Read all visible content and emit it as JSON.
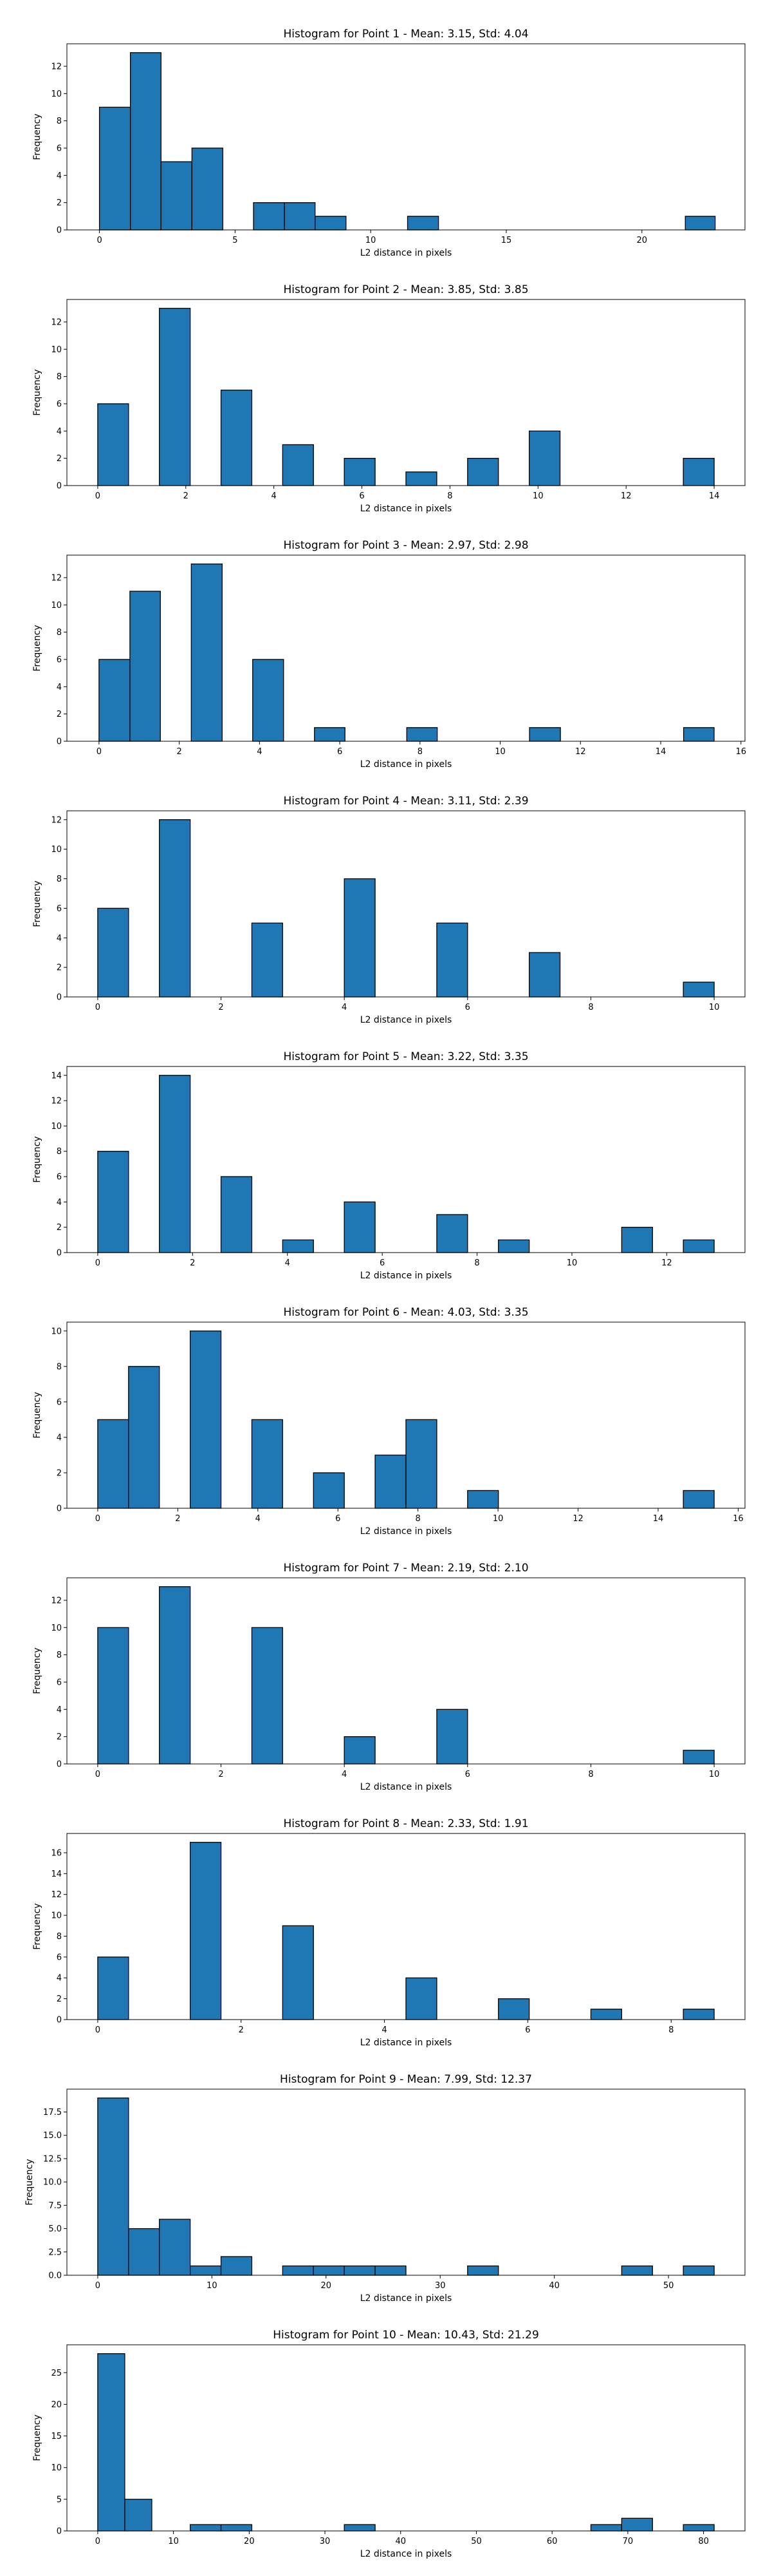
{
  "figure": {
    "bar_color": "#1f77b4",
    "edge_color": "#000000"
  },
  "chart_data": [
    {
      "type": "bar",
      "title": "Histogram for Point 1 - Mean: 3.15, Std: 4.04",
      "xlabel": "L2 distance in pixels",
      "ylabel": "Frequency",
      "xlim": [
        -1.2,
        23.8
      ],
      "ylim": [
        0,
        13.65
      ],
      "xticks": [
        0,
        5,
        10,
        15,
        20
      ],
      "xtick_labels": [
        "0",
        "5",
        "10",
        "15",
        "20"
      ],
      "yticks": [
        0,
        2,
        4,
        6,
        8,
        10,
        12
      ],
      "ytick_labels": [
        "0",
        "2",
        "4",
        "6",
        "8",
        "10",
        "12"
      ],
      "bins": [
        {
          "x0": 0.0,
          "x1": 1.14,
          "count": 9
        },
        {
          "x0": 1.14,
          "x1": 2.27,
          "count": 13
        },
        {
          "x0": 2.27,
          "x1": 3.41,
          "count": 5
        },
        {
          "x0": 3.41,
          "x1": 4.55,
          "count": 6
        },
        {
          "x0": 5.68,
          "x1": 6.82,
          "count": 2
        },
        {
          "x0": 6.82,
          "x1": 7.95,
          "count": 2
        },
        {
          "x0": 7.95,
          "x1": 9.09,
          "count": 1
        },
        {
          "x0": 11.36,
          "x1": 12.5,
          "count": 1
        },
        {
          "x0": 21.6,
          "x1": 22.7,
          "count": 1
        }
      ]
    },
    {
      "type": "bar",
      "title": "Histogram for Point 2 - Mean: 3.85, Std: 3.85",
      "xlabel": "L2 distance in pixels",
      "ylabel": "Frequency",
      "xlim": [
        -0.7,
        14.7
      ],
      "ylim": [
        0,
        13.65
      ],
      "xticks": [
        0,
        2,
        4,
        6,
        8,
        10,
        12,
        14
      ],
      "xtick_labels": [
        "0",
        "2",
        "4",
        "6",
        "8",
        "10",
        "12",
        "14"
      ],
      "yticks": [
        0,
        2,
        4,
        6,
        8,
        10,
        12
      ],
      "ytick_labels": [
        "0",
        "2",
        "4",
        "6",
        "8",
        "10",
        "12"
      ],
      "bins": [
        {
          "x0": 0.0,
          "x1": 0.7,
          "count": 6
        },
        {
          "x0": 1.4,
          "x1": 2.1,
          "count": 13
        },
        {
          "x0": 2.8,
          "x1": 3.5,
          "count": 7
        },
        {
          "x0": 4.2,
          "x1": 4.9,
          "count": 3
        },
        {
          "x0": 5.6,
          "x1": 6.3,
          "count": 2
        },
        {
          "x0": 7.0,
          "x1": 7.7,
          "count": 1
        },
        {
          "x0": 8.4,
          "x1": 9.1,
          "count": 2
        },
        {
          "x0": 9.8,
          "x1": 10.5,
          "count": 4
        },
        {
          "x0": 13.3,
          "x1": 14.0,
          "count": 2
        }
      ]
    },
    {
      "type": "bar",
      "title": "Histogram for Point 3 - Mean: 2.97, Std: 2.98",
      "xlabel": "L2 distance in pixels",
      "ylabel": "Frequency",
      "xlim": [
        -0.8,
        16.1
      ],
      "ylim": [
        0,
        13.65
      ],
      "xticks": [
        0,
        2,
        4,
        6,
        8,
        10,
        12,
        14,
        16
      ],
      "xtick_labels": [
        "0",
        "2",
        "4",
        "6",
        "8",
        "10",
        "12",
        "14",
        "16"
      ],
      "yticks": [
        0,
        2,
        4,
        6,
        8,
        10,
        12
      ],
      "ytick_labels": [
        "0",
        "2",
        "4",
        "6",
        "8",
        "10",
        "12"
      ],
      "bins": [
        {
          "x0": 0.0,
          "x1": 0.77,
          "count": 6
        },
        {
          "x0": 0.77,
          "x1": 1.53,
          "count": 11
        },
        {
          "x0": 2.3,
          "x1": 3.07,
          "count": 13
        },
        {
          "x0": 3.83,
          "x1": 4.6,
          "count": 6
        },
        {
          "x0": 5.37,
          "x1": 6.13,
          "count": 1
        },
        {
          "x0": 7.67,
          "x1": 8.43,
          "count": 1
        },
        {
          "x0": 10.73,
          "x1": 11.5,
          "count": 1
        },
        {
          "x0": 14.57,
          "x1": 15.33,
          "count": 1
        }
      ]
    },
    {
      "type": "bar",
      "title": "Histogram for Point 4 - Mean: 3.11, Std: 2.39",
      "xlabel": "L2 distance in pixels",
      "ylabel": "Frequency",
      "xlim": [
        -0.5,
        10.5
      ],
      "ylim": [
        0,
        12.6
      ],
      "xticks": [
        0,
        2,
        4,
        6,
        8,
        10
      ],
      "xtick_labels": [
        "0",
        "2",
        "4",
        "6",
        "8",
        "10"
      ],
      "yticks": [
        0,
        2,
        4,
        6,
        8,
        10,
        12
      ],
      "ytick_labels": [
        "0",
        "2",
        "4",
        "6",
        "8",
        "10",
        "12"
      ],
      "bins": [
        {
          "x0": 0.0,
          "x1": 0.5,
          "count": 6
        },
        {
          "x0": 1.0,
          "x1": 1.5,
          "count": 12
        },
        {
          "x0": 2.5,
          "x1": 3.0,
          "count": 5
        },
        {
          "x0": 4.0,
          "x1": 4.5,
          "count": 8
        },
        {
          "x0": 5.5,
          "x1": 6.0,
          "count": 5
        },
        {
          "x0": 7.0,
          "x1": 7.5,
          "count": 3
        },
        {
          "x0": 9.5,
          "x1": 10.0,
          "count": 1
        }
      ]
    },
    {
      "type": "bar",
      "title": "Histogram for Point 5 - Mean: 3.22, Std: 3.35",
      "xlabel": "L2 distance in pixels",
      "ylabel": "Frequency",
      "xlim": [
        -0.65,
        13.65
      ],
      "ylim": [
        0,
        14.7
      ],
      "xticks": [
        0,
        2,
        4,
        6,
        8,
        10,
        12
      ],
      "xtick_labels": [
        "0",
        "2",
        "4",
        "6",
        "8",
        "10",
        "12"
      ],
      "yticks": [
        0,
        2,
        4,
        6,
        8,
        10,
        12,
        14
      ],
      "ytick_labels": [
        "0",
        "2",
        "4",
        "6",
        "8",
        "10",
        "12",
        "14"
      ],
      "bins": [
        {
          "x0": 0.0,
          "x1": 0.65,
          "count": 8
        },
        {
          "x0": 1.3,
          "x1": 1.95,
          "count": 14
        },
        {
          "x0": 2.6,
          "x1": 3.25,
          "count": 6
        },
        {
          "x0": 3.9,
          "x1": 4.55,
          "count": 1
        },
        {
          "x0": 5.2,
          "x1": 5.85,
          "count": 4
        },
        {
          "x0": 7.15,
          "x1": 7.8,
          "count": 3
        },
        {
          "x0": 8.45,
          "x1": 9.1,
          "count": 1
        },
        {
          "x0": 11.05,
          "x1": 11.7,
          "count": 2
        },
        {
          "x0": 12.35,
          "x1": 13.0,
          "count": 1
        }
      ]
    },
    {
      "type": "bar",
      "title": "Histogram for Point 6 - Mean: 4.03, Std: 3.35",
      "xlabel": "L2 distance in pixels",
      "ylabel": "Frequency",
      "xlim": [
        -0.77,
        16.17
      ],
      "ylim": [
        0,
        10.5
      ],
      "xticks": [
        0,
        2,
        4,
        6,
        8,
        10,
        12,
        14,
        16
      ],
      "xtick_labels": [
        "0",
        "2",
        "4",
        "6",
        "8",
        "10",
        "12",
        "14",
        "16"
      ],
      "yticks": [
        0,
        2,
        4,
        6,
        8,
        10
      ],
      "ytick_labels": [
        "0",
        "2",
        "4",
        "6",
        "8",
        "10"
      ],
      "bins": [
        {
          "x0": 0.0,
          "x1": 0.77,
          "count": 5
        },
        {
          "x0": 0.77,
          "x1": 1.54,
          "count": 8
        },
        {
          "x0": 2.31,
          "x1": 3.08,
          "count": 10
        },
        {
          "x0": 3.85,
          "x1": 4.62,
          "count": 5
        },
        {
          "x0": 5.39,
          "x1": 6.16,
          "count": 2
        },
        {
          "x0": 6.93,
          "x1": 7.7,
          "count": 3
        },
        {
          "x0": 7.7,
          "x1": 8.47,
          "count": 5
        },
        {
          "x0": 9.24,
          "x1": 10.01,
          "count": 1
        },
        {
          "x0": 14.63,
          "x1": 15.4,
          "count": 1
        }
      ]
    },
    {
      "type": "bar",
      "title": "Histogram for Point 7 - Mean: 2.19, Std: 2.10",
      "xlabel": "L2 distance in pixels",
      "ylabel": "Frequency",
      "xlim": [
        -0.5,
        10.5
      ],
      "ylim": [
        0,
        13.65
      ],
      "xticks": [
        0,
        2,
        4,
        6,
        8,
        10
      ],
      "xtick_labels": [
        "0",
        "2",
        "4",
        "6",
        "8",
        "10"
      ],
      "yticks": [
        0,
        2,
        4,
        6,
        8,
        10,
        12
      ],
      "ytick_labels": [
        "0",
        "2",
        "4",
        "6",
        "8",
        "10",
        "12"
      ],
      "bins": [
        {
          "x0": 0.0,
          "x1": 0.5,
          "count": 10
        },
        {
          "x0": 1.0,
          "x1": 1.5,
          "count": 13
        },
        {
          "x0": 2.5,
          "x1": 3.0,
          "count": 10
        },
        {
          "x0": 4.0,
          "x1": 4.5,
          "count": 2
        },
        {
          "x0": 5.5,
          "x1": 6.0,
          "count": 4
        },
        {
          "x0": 9.5,
          "x1": 10.0,
          "count": 1
        }
      ]
    },
    {
      "type": "bar",
      "title": "Histogram for Point 8 - Mean: 2.33, Std: 1.91",
      "xlabel": "L2 distance in pixels",
      "ylabel": "Frequency",
      "xlim": [
        -0.43,
        9.03
      ],
      "ylim": [
        0,
        17.85
      ],
      "xticks": [
        0,
        2,
        4,
        6,
        8
      ],
      "xtick_labels": [
        "0",
        "2",
        "4",
        "6",
        "8"
      ],
      "yticks": [
        0,
        2,
        4,
        6,
        8,
        10,
        12,
        14,
        16
      ],
      "ytick_labels": [
        "0",
        "2",
        "4",
        "6",
        "8",
        "10",
        "12",
        "14",
        "16"
      ],
      "bins": [
        {
          "x0": 0.0,
          "x1": 0.43,
          "count": 6
        },
        {
          "x0": 1.29,
          "x1": 1.72,
          "count": 17
        },
        {
          "x0": 2.58,
          "x1": 3.01,
          "count": 9
        },
        {
          "x0": 4.3,
          "x1": 4.73,
          "count": 4
        },
        {
          "x0": 5.59,
          "x1": 6.02,
          "count": 2
        },
        {
          "x0": 6.88,
          "x1": 7.31,
          "count": 1
        },
        {
          "x0": 8.17,
          "x1": 8.6,
          "count": 1
        }
      ]
    },
    {
      "type": "bar",
      "title": "Histogram for Point 9 - Mean: 7.99, Std: 12.37",
      "xlabel": "L2 distance in pixels",
      "ylabel": "Frequency",
      "xlim": [
        -2.7,
        56.7
      ],
      "ylim": [
        0,
        19.95
      ],
      "xticks": [
        0,
        10,
        20,
        30,
        40,
        50
      ],
      "xtick_labels": [
        "0",
        "10",
        "20",
        "30",
        "40",
        "50"
      ],
      "yticks": [
        0,
        2.5,
        5,
        7.5,
        10,
        12.5,
        15,
        17.5
      ],
      "ytick_labels": [
        "0.0",
        "2.5",
        "5.0",
        "7.5",
        "10.0",
        "12.5",
        "15.0",
        "17.5"
      ],
      "bins": [
        {
          "x0": 0.0,
          "x1": 2.7,
          "count": 19
        },
        {
          "x0": 2.7,
          "x1": 5.4,
          "count": 5
        },
        {
          "x0": 5.4,
          "x1": 8.1,
          "count": 6
        },
        {
          "x0": 8.1,
          "x1": 10.8,
          "count": 1
        },
        {
          "x0": 10.8,
          "x1": 13.5,
          "count": 2
        },
        {
          "x0": 16.2,
          "x1": 18.9,
          "count": 1
        },
        {
          "x0": 18.9,
          "x1": 21.6,
          "count": 1
        },
        {
          "x0": 21.6,
          "x1": 24.3,
          "count": 1
        },
        {
          "x0": 24.3,
          "x1": 27.0,
          "count": 1
        },
        {
          "x0": 32.4,
          "x1": 35.1,
          "count": 1
        },
        {
          "x0": 45.9,
          "x1": 48.6,
          "count": 1
        },
        {
          "x0": 51.3,
          "x1": 54.0,
          "count": 1
        }
      ]
    },
    {
      "type": "bar",
      "title": "Histogram for Point 10 - Mean: 10.43, Std: 21.29",
      "xlabel": "L2 distance in pixels",
      "ylabel": "Frequency",
      "xlim": [
        -4.07,
        85.47
      ],
      "ylim": [
        0,
        29.4
      ],
      "xticks": [
        0,
        10,
        20,
        30,
        40,
        50,
        60,
        70,
        80
      ],
      "xtick_labels": [
        "0",
        "10",
        "20",
        "30",
        "40",
        "50",
        "60",
        "70",
        "80"
      ],
      "yticks": [
        0,
        5,
        10,
        15,
        20,
        25
      ],
      "ytick_labels": [
        "0",
        "5",
        "10",
        "15",
        "20",
        "25"
      ],
      "bins": [
        {
          "x0": 0.0,
          "x1": 3.57,
          "count": 28
        },
        {
          "x0": 3.57,
          "x1": 7.14,
          "count": 5
        },
        {
          "x0": 12.21,
          "x1": 16.28,
          "count": 1
        },
        {
          "x0": 16.28,
          "x1": 20.35,
          "count": 1
        },
        {
          "x0": 32.56,
          "x1": 36.63,
          "count": 1
        },
        {
          "x0": 65.12,
          "x1": 69.19,
          "count": 1
        },
        {
          "x0": 69.19,
          "x1": 73.26,
          "count": 2
        },
        {
          "x0": 77.33,
          "x1": 81.4,
          "count": 1
        }
      ]
    }
  ]
}
